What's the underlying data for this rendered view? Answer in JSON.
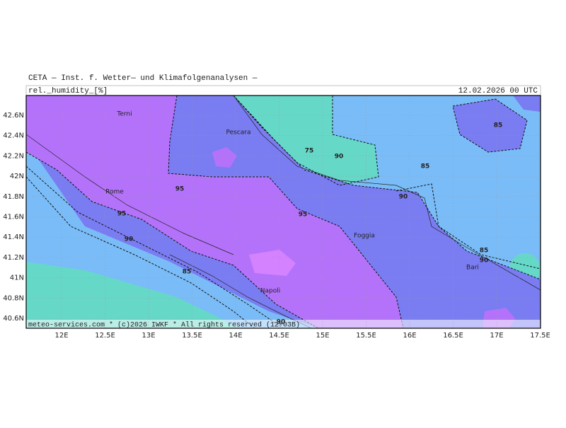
{
  "header": {
    "title": "CETA — Inst. f. Wetter— und Klimafolgenanalysen —",
    "field": "rel._humidity_[%]",
    "time": "12.02.2026 00 UTC"
  },
  "footer": "meteo-services.com * (c)2026 IWKF * All rights reserved (12+03B)",
  "lon_labels": [
    "12E",
    "12.5E",
    "13E",
    "13.5E",
    "14E",
    "14.5E",
    "15E",
    "15.5E",
    "16E",
    "16.5E",
    "17E",
    "17.5E"
  ],
  "lat_labels": [
    "42.6N",
    "42.4N",
    "42.2N",
    "42N",
    "41.8N",
    "41.6N",
    "41.4N",
    "41.2N",
    "41N",
    "40.8N",
    "40.6N"
  ],
  "cities": [
    "Terni",
    "Pescara",
    "Rome",
    "Foggia",
    "Napoli",
    "Bari"
  ],
  "contour_labels": [
    "85",
    "75",
    "90",
    "85",
    "95",
    "90",
    "95",
    "95",
    "90",
    "85",
    "90",
    "85",
    "90"
  ]
}
